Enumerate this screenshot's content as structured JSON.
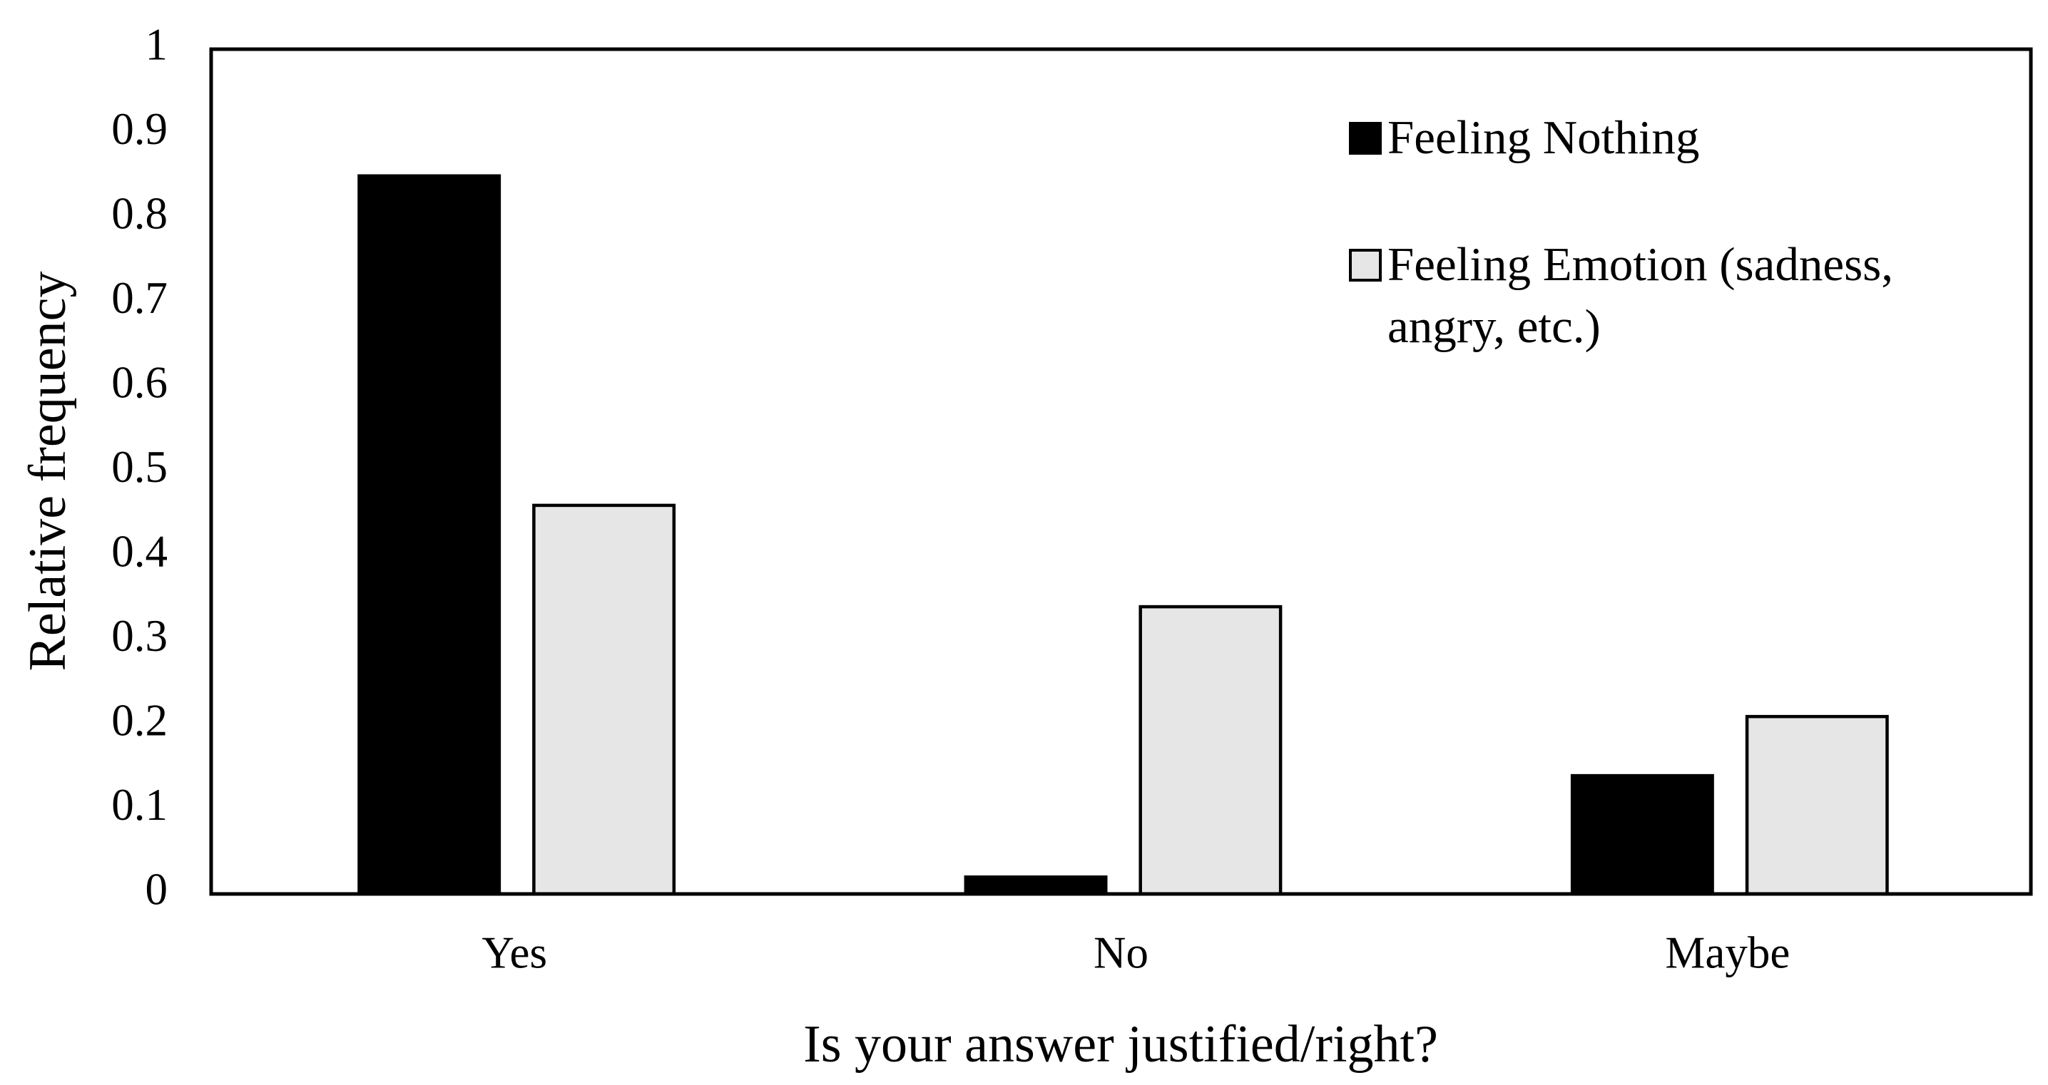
{
  "chart_data": {
    "type": "bar",
    "x_label": "Is your answer justified/right?",
    "y_label": "Relative frequency",
    "categories": [
      "Yes",
      "No",
      "Maybe"
    ],
    "series": [
      {
        "name": "Feeling Nothing",
        "color": "#000000",
        "values": [
          0.85,
          0.02,
          0.14
        ]
      },
      {
        "name": "Feeling Emotion (sadness, angry, etc.)",
        "color": "#e6e6e6",
        "values": [
          0.46,
          0.34,
          0.21
        ]
      }
    ],
    "ylim": [
      0,
      1
    ],
    "yticks": [
      0,
      0.1,
      0.2,
      0.3,
      0.4,
      0.5,
      0.6,
      0.7,
      0.8,
      0.9,
      1
    ],
    "grid": false,
    "legend": "upper-right"
  }
}
